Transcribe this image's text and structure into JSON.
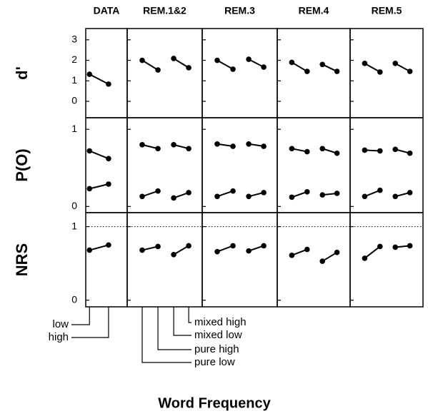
{
  "chart_data": {
    "type": "line",
    "columns": [
      "DATA",
      "REM.1&2",
      "REM.3",
      "REM.4",
      "REM.5"
    ],
    "data_categories": [
      "low",
      "high"
    ],
    "rem_categories": [
      "pure low",
      "pure high",
      "mixed low",
      "mixed high"
    ],
    "xlabel": "Word Frequency",
    "color": "#000000",
    "rows": [
      {
        "ylabel": "d'",
        "ylim": [
          -0.8,
          3.55
        ],
        "yticks": [
          0,
          1,
          2,
          3
        ]
      },
      {
        "ylabel": "P(O)",
        "ylim": [
          -0.08,
          1.15
        ],
        "yticks": [
          0,
          1
        ]
      },
      {
        "ylabel": "NRS",
        "ylim": [
          -0.09,
          1.19
        ],
        "yticks": [
          0,
          1
        ],
        "reference": 1
      }
    ],
    "panels": [
      [
        {
          "series": [
            {
              "values": [
                1.32,
                0.84
              ]
            }
          ]
        },
        {
          "series": [
            {
              "values": [
                2.0,
                1.53,
                null,
                null
              ]
            },
            {
              "values": [
                null,
                null,
                2.09,
                1.64
              ]
            }
          ]
        },
        {
          "series": [
            {
              "values": [
                2.0,
                1.57,
                null,
                null
              ]
            },
            {
              "values": [
                null,
                null,
                2.05,
                1.67
              ]
            }
          ]
        },
        {
          "series": [
            {
              "values": [
                1.9,
                1.46,
                null,
                null
              ]
            },
            {
              "values": [
                null,
                null,
                1.8,
                1.46
              ]
            }
          ]
        },
        {
          "series": [
            {
              "values": [
                1.85,
                1.43,
                null,
                null
              ]
            },
            {
              "values": [
                null,
                null,
                1.85,
                1.46
              ]
            }
          ]
        }
      ],
      [
        {
          "series": [
            {
              "values": [
                0.72,
                0.62
              ]
            },
            {
              "values": [
                0.23,
                0.29
              ]
            }
          ]
        },
        {
          "series": [
            {
              "values": [
                0.8,
                0.75,
                null,
                null
              ]
            },
            {
              "values": [
                null,
                null,
                0.8,
                0.75
              ]
            },
            {
              "values": [
                0.13,
                0.2,
                null,
                null
              ]
            },
            {
              "values": [
                null,
                null,
                0.11,
                0.18
              ]
            }
          ]
        },
        {
          "series": [
            {
              "values": [
                0.81,
                0.78,
                null,
                null
              ]
            },
            {
              "values": [
                null,
                null,
                0.81,
                0.78
              ]
            },
            {
              "values": [
                0.13,
                0.2,
                null,
                null
              ]
            },
            {
              "values": [
                null,
                null,
                0.13,
                0.18
              ]
            }
          ]
        },
        {
          "series": [
            {
              "values": [
                0.75,
                0.71,
                null,
                null
              ]
            },
            {
              "values": [
                null,
                null,
                0.75,
                0.69
              ]
            },
            {
              "values": [
                0.12,
                0.19,
                null,
                null
              ]
            },
            {
              "values": [
                null,
                null,
                0.15,
                0.17
              ]
            }
          ]
        },
        {
          "series": [
            {
              "values": [
                0.73,
                0.72,
                null,
                null
              ]
            },
            {
              "values": [
                null,
                null,
                0.74,
                0.69
              ]
            },
            {
              "values": [
                0.13,
                0.21,
                null,
                null
              ]
            },
            {
              "values": [
                null,
                null,
                0.13,
                0.18
              ]
            }
          ]
        }
      ],
      [
        {
          "series": [
            {
              "values": [
                0.68,
                0.75
              ]
            }
          ]
        },
        {
          "series": [
            {
              "values": [
                0.68,
                0.73,
                null,
                null
              ]
            },
            {
              "values": [
                null,
                null,
                0.62,
                0.74
              ]
            }
          ]
        },
        {
          "series": [
            {
              "values": [
                0.66,
                0.74,
                null,
                null
              ]
            },
            {
              "values": [
                null,
                null,
                0.67,
                0.74
              ]
            }
          ]
        },
        {
          "series": [
            {
              "values": [
                0.61,
                0.69,
                null,
                null
              ]
            },
            {
              "values": [
                null,
                null,
                0.53,
                0.65
              ]
            }
          ]
        },
        {
          "series": [
            {
              "values": [
                0.57,
                0.73,
                null,
                null
              ]
            },
            {
              "values": [
                null,
                null,
                0.72,
                0.74
              ]
            }
          ]
        }
      ]
    ]
  }
}
